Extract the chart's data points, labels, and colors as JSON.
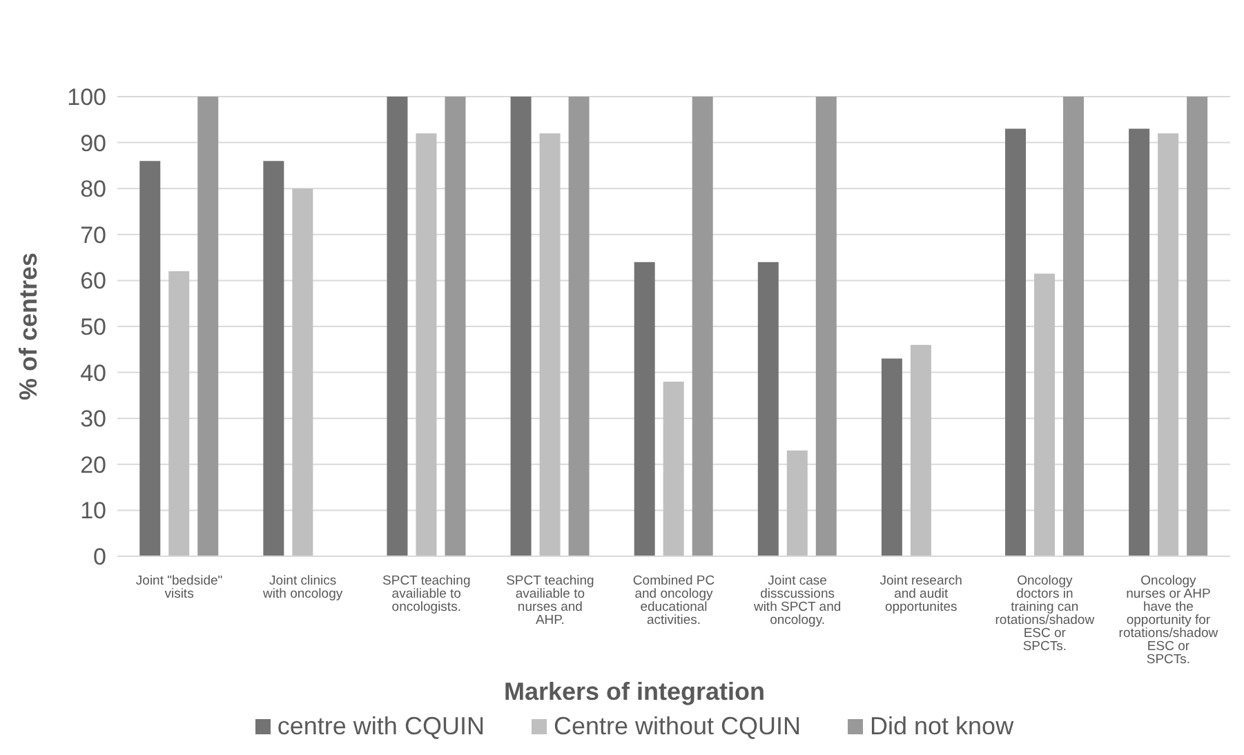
{
  "chart_data": {
    "type": "bar",
    "xlabel": "Markers of integration",
    "ylabel": "% of centres",
    "categories": [
      "Joint \"bedside\" visits",
      "Joint clinics with oncology",
      "SPCT teaching availiable to oncologists.",
      "SPCT teaching availiable to nurses and AHP.",
      "Combined PC and oncology educational activities.",
      "Joint case disscussions with SPCT and oncology.",
      "Joint research and audit opportunites",
      "Oncology doctors in training can rotations/shadow ESC or SPCTs.",
      "Oncology nurses or AHP have the opportunity for rotations/shadow ESC or SPCTs."
    ],
    "series": [
      {
        "name": "centre with CQUIN",
        "color": "#737373",
        "values": [
          86,
          86,
          100,
          100,
          64,
          64,
          43,
          93,
          93
        ]
      },
      {
        "name": "Centre without CQUIN",
        "color": "#bfbfbf",
        "values": [
          62,
          80,
          92,
          92,
          38,
          23,
          46,
          61.5,
          92
        ]
      },
      {
        "name": "Did not know",
        "color": "#999999",
        "values": [
          100,
          null,
          100,
          100,
          100,
          100,
          null,
          100,
          100
        ]
      }
    ],
    "ylim": [
      0,
      100
    ],
    "yticks": [
      0,
      10,
      20,
      30,
      40,
      50,
      60,
      70,
      80,
      90,
      100
    ],
    "grid": "y",
    "legend": "bottom"
  }
}
